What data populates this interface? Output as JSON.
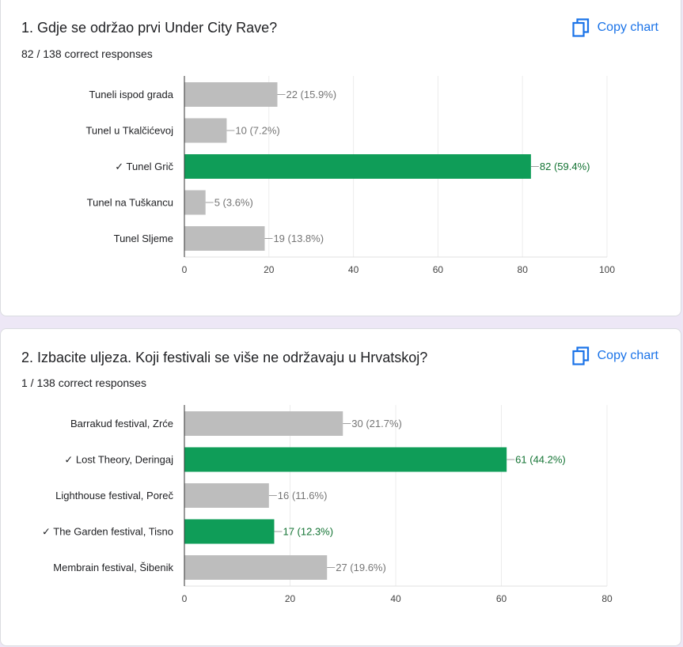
{
  "copy_label": "Copy chart",
  "questions": [
    {
      "title": "1. Gdje se održao prvi Under City Rave?",
      "subtitle": "82 / 138 correct responses",
      "chart_data": {
        "type": "bar",
        "orientation": "horizontal",
        "categories": [
          "Tuneli ispod grada",
          "Tunel u Tkalčićevoj",
          "✓ Tunel Grič",
          "Tunel na Tuškancu",
          "Tunel Sljeme"
        ],
        "values": [
          22,
          10,
          82,
          5,
          19
        ],
        "value_labels": [
          "22 (15.9%)",
          "10 (7.2%)",
          "82 (59.4%)",
          "5 (3.6%)",
          "19 (13.8%)"
        ],
        "correct": [
          false,
          false,
          true,
          false,
          false
        ],
        "xlim": [
          0,
          100
        ],
        "ticks": [
          0,
          20,
          40,
          60,
          80,
          100
        ],
        "colors": {
          "correct": "#0f9d58",
          "incorrect": "#bdbdbd",
          "correct_label": "#137333",
          "incorrect_label": "#757575"
        }
      }
    },
    {
      "title": "2. Izbacite uljeza. Koji festivali se više ne održavaju u Hrvatskoj?",
      "subtitle": "1 / 138 correct responses",
      "chart_data": {
        "type": "bar",
        "orientation": "horizontal",
        "categories": [
          "Barrakud festival, Zrće",
          "✓ Lost Theory, Deringaj",
          "Lighthouse festival, Poreč",
          "✓ The Garden festival, Tisno",
          "Membrain festival, Šibenik"
        ],
        "values": [
          30,
          61,
          16,
          17,
          27
        ],
        "value_labels": [
          "30 (21.7%)",
          "61 (44.2%)",
          "16 (11.6%)",
          "17 (12.3%)",
          "27 (19.6%)"
        ],
        "correct": [
          false,
          true,
          false,
          true,
          false
        ],
        "xlim": [
          0,
          80
        ],
        "ticks": [
          0,
          20,
          40,
          60,
          80
        ],
        "colors": {
          "correct": "#0f9d58",
          "incorrect": "#bdbdbd",
          "correct_label": "#137333",
          "incorrect_label": "#757575"
        }
      }
    }
  ]
}
